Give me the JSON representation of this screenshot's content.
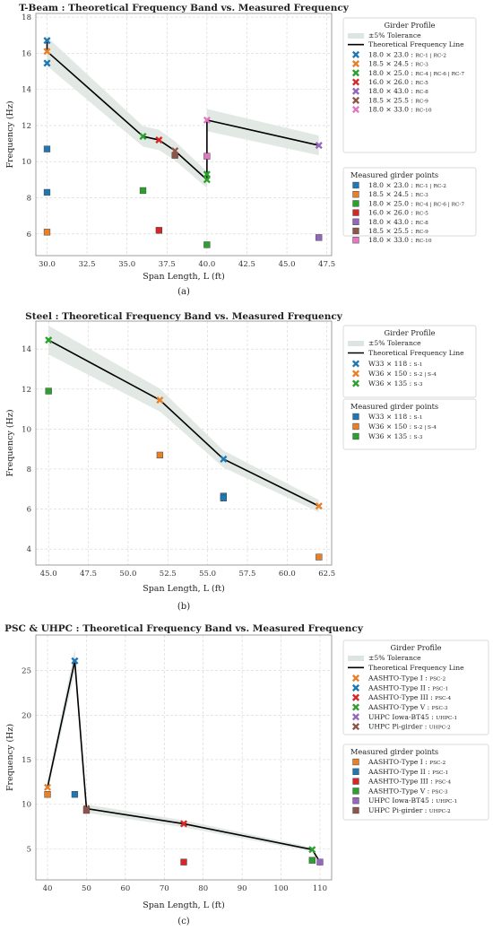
{
  "chart_data": [
    {
      "type": "line",
      "title": "T-Beam : Theoretical Frequency Band vs. Measured Frequency",
      "xlabel": "Span Length, L (ft)",
      "ylabel": "Frequency (Hz)",
      "caption": "(a)",
      "xlim": [
        29.3,
        47.8
      ],
      "ylim": [
        4.8,
        18.2
      ],
      "xticks": [
        "30.0",
        "32.5",
        "35.0",
        "37.5",
        "40.0",
        "42.5",
        "45.0",
        "47.5"
      ],
      "yticks": [
        "6",
        "8",
        "10",
        "12",
        "14",
        "16",
        "18"
      ],
      "grid": true,
      "legend_position": "right",
      "legend_title": "Girder Profile",
      "tolerance_label": "±5% Tolerance",
      "theory_label": "Theoretical Frequency Line",
      "measured_title": "Measured girder points",
      "theory_line": {
        "x": [
          30,
          30,
          36,
          37,
          38,
          40,
          40,
          47
        ],
        "y": [
          16.7,
          16.1,
          11.4,
          11.2,
          10.6,
          9.0,
          12.3,
          10.9
        ]
      },
      "series": [
        {
          "name": "18.0 × 23.0",
          "tag": "RC-1 | RC-2",
          "color": "#1f77b4",
          "theory": [
            [
              30,
              16.7
            ],
            [
              30,
              15.45
            ]
          ],
          "measured": [
            [
              30,
              10.7
            ],
            [
              30,
              8.3
            ]
          ]
        },
        {
          "name": "18.5 × 24.5",
          "tag": "RC-3",
          "color": "#e8802a",
          "theory": [
            [
              30,
              16.1
            ]
          ],
          "measured": [
            [
              30,
              6.1
            ]
          ]
        },
        {
          "name": "18.0 × 25.0",
          "tag": "RC-4 | RC-6 | RC-7",
          "color": "#2ca02c",
          "theory": [
            [
              36,
              11.4
            ],
            [
              40,
              9.3
            ],
            [
              40,
              9.0
            ]
          ],
          "measured": [
            [
              36,
              8.4
            ],
            [
              40,
              5.4
            ]
          ]
        },
        {
          "name": "16.0 × 26.0",
          "tag": "RC-5",
          "color": "#d62728",
          "theory": [
            [
              37,
              11.2
            ]
          ],
          "measured": [
            [
              37,
              6.2
            ]
          ]
        },
        {
          "name": "18.0 × 43.0",
          "tag": "RC-8",
          "color": "#9467bd",
          "theory": [
            [
              47,
              10.9
            ]
          ],
          "measured": [
            [
              47,
              5.8
            ]
          ]
        },
        {
          "name": "18.5 × 25.5",
          "tag": "RC-9",
          "color": "#8c564b",
          "theory": [
            [
              38,
              10.6
            ]
          ],
          "measured": [
            [
              38,
              10.35
            ]
          ]
        },
        {
          "name": "18.0 × 33.0",
          "tag": "RC-10",
          "color": "#e377c2",
          "theory": [
            [
              40,
              12.3
            ]
          ],
          "measured": [
            [
              40,
              10.3
            ]
          ]
        }
      ]
    },
    {
      "type": "line",
      "title": "Steel : Theoretical Frequency Band vs. Measured Frequency",
      "xlabel": "Span Length, L (ft)",
      "ylabel": "Frequency (Hz)",
      "caption": "(b)",
      "xlim": [
        44.2,
        62.8
      ],
      "ylim": [
        3.2,
        15.4
      ],
      "xticks": [
        "45.0",
        "47.5",
        "50.0",
        "52.5",
        "55.0",
        "57.5",
        "60.0",
        "62.5"
      ],
      "yticks": [
        "4",
        "6",
        "8",
        "10",
        "12",
        "14"
      ],
      "grid": true,
      "legend_position": "right",
      "legend_title": "Girder Profile",
      "tolerance_label": "±5% Tolerance",
      "theory_label": "Theoretical Frequency Line",
      "measured_title": "Measured girder points",
      "theory_line": {
        "x": [
          45,
          52,
          56,
          62
        ],
        "y": [
          14.45,
          11.45,
          8.5,
          6.15
        ]
      },
      "series": [
        {
          "name": "W33 × 118",
          "tag": "S-1",
          "color": "#1f77b4",
          "theory": [
            [
              56,
              8.5
            ]
          ],
          "measured": [
            [
              56,
              6.65
            ],
            [
              56,
              6.55
            ]
          ]
        },
        {
          "name": "W36 × 150",
          "tag": "S-2 | S-4",
          "color": "#e8802a",
          "theory": [
            [
              52,
              11.45
            ],
            [
              62,
              6.15
            ]
          ],
          "measured": [
            [
              52,
              8.7
            ],
            [
              62,
              3.6
            ]
          ]
        },
        {
          "name": "W36 × 135",
          "tag": "S-3",
          "color": "#2ca02c",
          "theory": [
            [
              45,
              14.45
            ]
          ],
          "measured": [
            [
              45,
              11.9
            ]
          ]
        }
      ]
    },
    {
      "type": "line",
      "title": "PSC & UHPC : Theoretical Frequency Band vs. Measured Frequency",
      "xlabel": "Span Length, L (ft)",
      "ylabel": "Frequency (Hz)",
      "caption": "(c)",
      "xlim": [
        37,
        113
      ],
      "ylim": [
        1.5,
        29
      ],
      "xticks": [
        "40",
        "50",
        "60",
        "70",
        "80",
        "90",
        "100",
        "110"
      ],
      "yticks": [
        "5",
        "10",
        "15",
        "20",
        "25"
      ],
      "grid": true,
      "legend_position": "right",
      "legend_title": "Girder Profile",
      "tolerance_label": "±5% Tolerance",
      "theory_label": "Theoretical Frequency Line",
      "measured_title": "Measured girder points",
      "theory_line": {
        "x": [
          40,
          47,
          50,
          75,
          108,
          110
        ],
        "y": [
          11.9,
          26.1,
          9.5,
          7.8,
          4.9,
          3.5
        ]
      },
      "series": [
        {
          "name": "AASHTO-Type I",
          "tag": "PSC-2",
          "color": "#e8802a",
          "theory": [
            [
              40,
              11.9
            ]
          ],
          "measured": [
            [
              40,
              11.1
            ]
          ]
        },
        {
          "name": "AASHTO-Type II",
          "tag": "PSC-1",
          "color": "#1f77b4",
          "theory": [
            [
              47,
              26.1
            ]
          ],
          "measured": [
            [
              47,
              11.1
            ]
          ]
        },
        {
          "name": "AASHTO-Type III",
          "tag": "PSC-4",
          "color": "#d62728",
          "theory": [
            [
              75,
              7.8
            ]
          ],
          "measured": [
            [
              75,
              3.5
            ]
          ]
        },
        {
          "name": "AASHTO-Type V",
          "tag": "PSC-3",
          "color": "#2ca02c",
          "theory": [
            [
              108,
              4.9
            ]
          ],
          "measured": [
            [
              108,
              3.7
            ]
          ]
        },
        {
          "name": "UHPC Iowa-BT45",
          "tag": "UHPC-1",
          "color": "#9467bd",
          "theory": [
            [
              110,
              3.5
            ]
          ],
          "measured": [
            [
              110,
              3.5
            ]
          ]
        },
        {
          "name": "UHPC Pi-girder",
          "tag": "UHPC-2",
          "color": "#8c564b",
          "theory": [
            [
              50,
              9.5
            ]
          ],
          "measured": [
            [
              50,
              9.3
            ]
          ]
        }
      ]
    }
  ],
  "colors": {
    "band": "#dde5e1",
    "theory_line": "#000000",
    "grid": "#d5d5d5"
  }
}
